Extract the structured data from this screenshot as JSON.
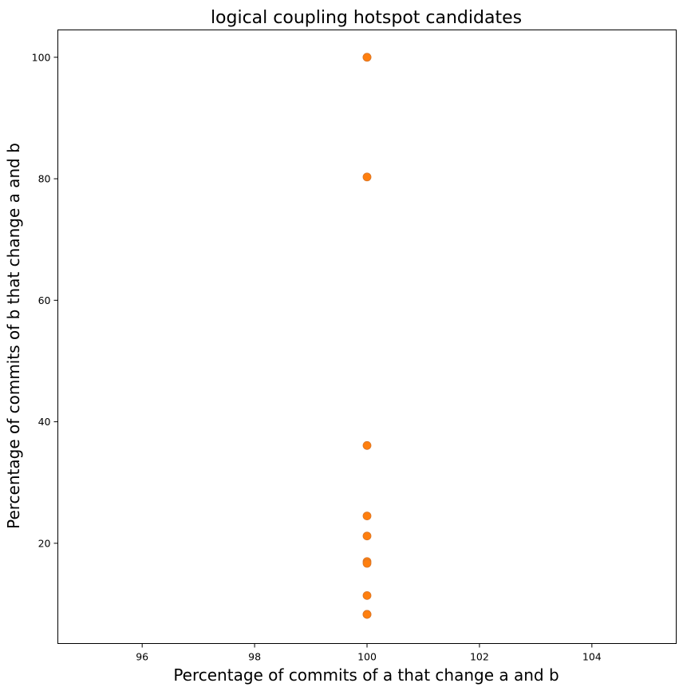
{
  "chart_data": {
    "type": "scatter",
    "title": "logical coupling hotspot candidates",
    "xlabel": "Percentage of commits of a that change a and b",
    "ylabel": "Percentage of commits of b that change a and b",
    "xlim": [
      94.5,
      105.5
    ],
    "ylim": [
      3.5,
      104.5
    ],
    "xticks": [
      96,
      98,
      100,
      102,
      104
    ],
    "yticks": [
      20,
      40,
      60,
      80,
      100
    ],
    "grid": false,
    "marker_color": "#ff7f0e",
    "edge_color": "#d8762a",
    "series": [
      {
        "x": [
          100,
          100,
          100,
          100,
          100,
          100,
          100,
          100,
          100,
          100,
          100
        ],
        "y": [
          100,
          100,
          80.3,
          36.1,
          24.5,
          21.2,
          17.0,
          16.7,
          11.4,
          8.3,
          8.3
        ]
      }
    ]
  }
}
